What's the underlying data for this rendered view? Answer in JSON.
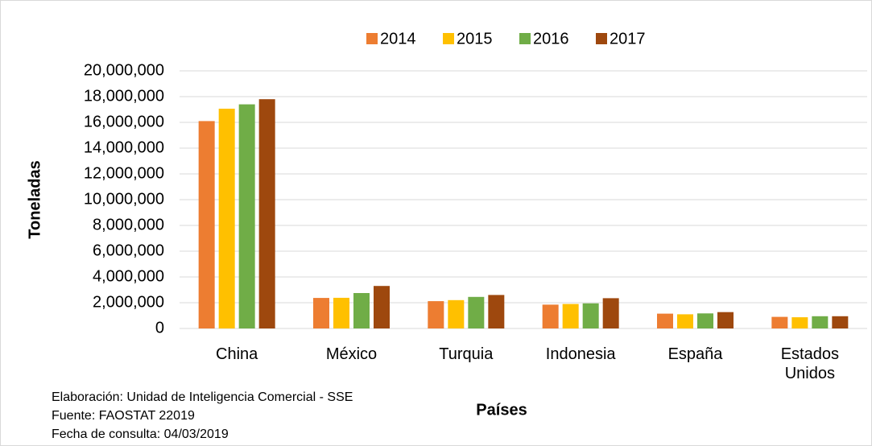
{
  "chart_data": {
    "type": "bar",
    "categories": [
      "China",
      "México",
      "Turquia",
      "Indonesia",
      "España",
      "Estados Unidos"
    ],
    "series": [
      {
        "name": "2014",
        "color": "#ed7d31",
        "values": [
          16100000,
          2370000,
          2120000,
          1850000,
          1150000,
          900000
        ]
      },
      {
        "name": "2015",
        "color": "#ffc000",
        "values": [
          17060000,
          2380000,
          2200000,
          1900000,
          1100000,
          870000
        ]
      },
      {
        "name": "2016",
        "color": "#70ad47",
        "values": [
          17400000,
          2750000,
          2450000,
          1950000,
          1170000,
          950000
        ]
      },
      {
        "name": "2017",
        "color": "#9e480e",
        "values": [
          17800000,
          3300000,
          2600000,
          2350000,
          1270000,
          950000
        ]
      }
    ],
    "ylabel": "Toneladas",
    "xlabel": "Países",
    "ylim": [
      0,
      20000000
    ],
    "yticks": [
      0,
      {
        "value": 2000000,
        "label": "2,000,000"
      },
      {
        "value": 4000000,
        "label": "4,000,000"
      },
      {
        "value": 6000000,
        "label": "6,000,000"
      },
      {
        "value": 8000000,
        "label": "8,000,000"
      },
      {
        "value": 10000000,
        "label": "10,000,000"
      },
      {
        "value": 12000000,
        "label": "12,000,000"
      },
      {
        "value": 14000000,
        "label": "14,000,000"
      },
      {
        "value": 16000000,
        "label": "16,000,000"
      },
      {
        "value": 18000000,
        "label": "18,000,000"
      },
      {
        "value": 20000000,
        "label": "20,000,000"
      }
    ],
    "grid": true,
    "legend": "top",
    "notes": [
      "Elaboración: Unidad de Inteligencia Comercial - SSE",
      "Fuente: FAOSTAT 22019",
      "Fecha de consulta: 04/03/2019"
    ]
  }
}
